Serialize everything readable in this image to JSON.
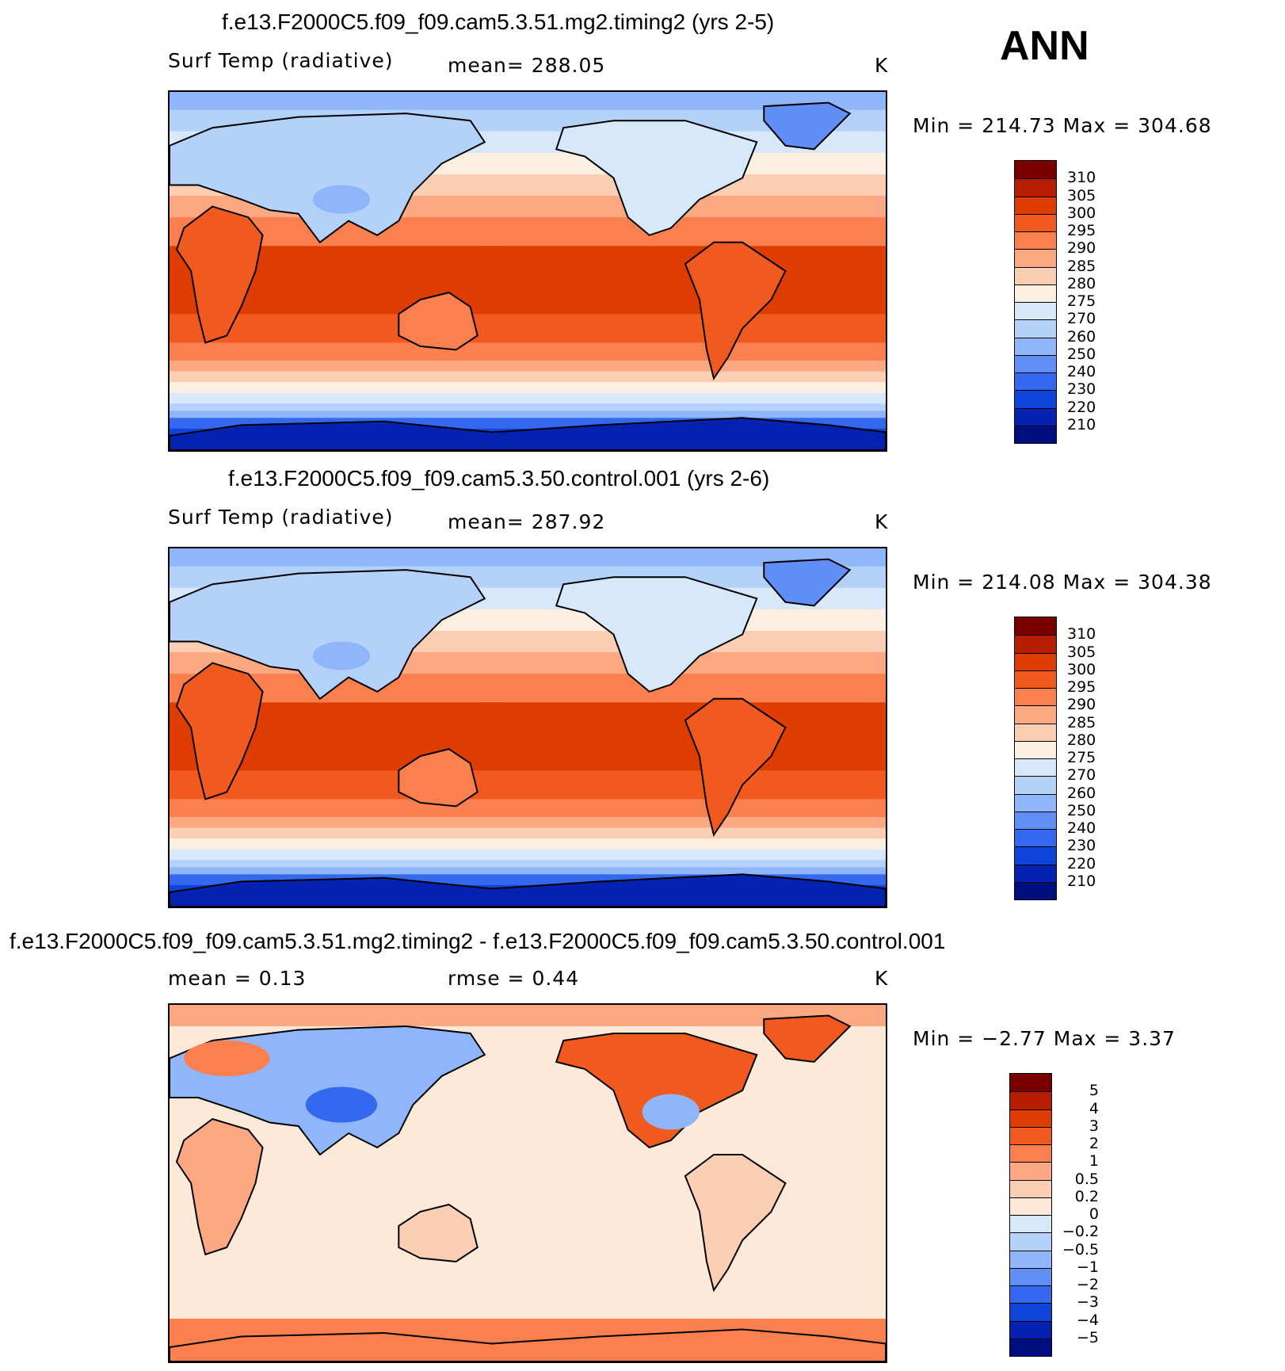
{
  "season": "ANN",
  "panels": [
    {
      "title": "f.e13.F2000C5.f09_f09.cam5.3.51.mg2.timing2 (yrs 2-5)",
      "variable": "Surf Temp (radiative)",
      "stat_text": "mean=  288.05",
      "units": "K",
      "minmax": "Min  =  214.73  Max  =  304.68",
      "colorbar": "abs",
      "field": "abs"
    },
    {
      "title": "f.e13.F2000C5.f09_f09.cam5.3.50.control.001 (yrs 2-6)",
      "variable": "Surf Temp (radiative)",
      "stat_text": "mean=  287.92",
      "units": "K",
      "minmax": "Min  =  214.08  Max  =  304.38",
      "colorbar": "abs",
      "field": "abs"
    },
    {
      "title": "f.e13.F2000C5.f09_f09.cam5.3.51.mg2.timing2 - f.e13.F2000C5.f09_f09.cam5.3.50.control.001",
      "variable": "mean =     0.13",
      "stat_text": "rmse =     0.44",
      "units": "K",
      "minmax": "Min  =    −2.77  Max  =     3.37",
      "colorbar": "diff",
      "field": "diff"
    }
  ],
  "chart_data": [
    {
      "type": "heatmap",
      "title": "f.e13.F2000C5.f09_f09.cam5.3.51.mg2.timing2 (yrs 2-5)",
      "variable": "Surf Temp (radiative)",
      "units": "K",
      "mean": 288.05,
      "min": 214.73,
      "max": 304.68,
      "levels": [
        "310",
        "305",
        "300",
        "295",
        "290",
        "285",
        "280",
        "275",
        "270",
        "260",
        "250",
        "240",
        "230",
        "220",
        "210"
      ],
      "colors": [
        "#7a0000",
        "#b51e00",
        "#de3c00",
        "#f05a1e",
        "#fb804f",
        "#fca882",
        "#fccfb4",
        "#fdf0e2",
        "#d6e8fa",
        "#b4d1fa",
        "#8fb6fa",
        "#5f8ff7",
        "#3468ee",
        "#0f44db",
        "#0322b0",
        "#000f80"
      ]
    },
    {
      "type": "heatmap",
      "title": "f.e13.F2000C5.f09_f09.cam5.3.50.control.001 (yrs 2-6)",
      "variable": "Surf Temp (radiative)",
      "units": "K",
      "mean": 287.92,
      "min": 214.08,
      "max": 304.38,
      "levels": [
        "310",
        "305",
        "300",
        "295",
        "290",
        "285",
        "280",
        "275",
        "270",
        "260",
        "250",
        "240",
        "230",
        "220",
        "210"
      ],
      "colors": [
        "#7a0000",
        "#b51e00",
        "#de3c00",
        "#f05a1e",
        "#fb804f",
        "#fca882",
        "#fccfb4",
        "#fdf0e2",
        "#d6e8fa",
        "#b4d1fa",
        "#8fb6fa",
        "#5f8ff7",
        "#3468ee",
        "#0f44db",
        "#0322b0",
        "#000f80"
      ]
    },
    {
      "type": "heatmap",
      "title": "f.e13.F2000C5.f09_f09.cam5.3.51.mg2.timing2 - f.e13.F2000C5.f09_f09.cam5.3.50.control.001",
      "units": "K",
      "mean": 0.13,
      "rmse": 0.44,
      "min": -2.77,
      "max": 3.37,
      "levels": [
        "5",
        "4",
        "3",
        "2",
        "1",
        "0.5",
        "0.2",
        "0",
        "−0.2",
        "−0.5",
        "−1",
        "−2",
        "−3",
        "−4",
        "−5"
      ],
      "colors": [
        "#7a0000",
        "#b51e00",
        "#de3c00",
        "#f05a1e",
        "#fb804f",
        "#fca882",
        "#fccfb4",
        "#fde9d8",
        "#d6e8fa",
        "#b4d1fa",
        "#8fb6fa",
        "#5f8ff7",
        "#3468ee",
        "#0f44db",
        "#0322b0",
        "#000f80"
      ]
    }
  ]
}
